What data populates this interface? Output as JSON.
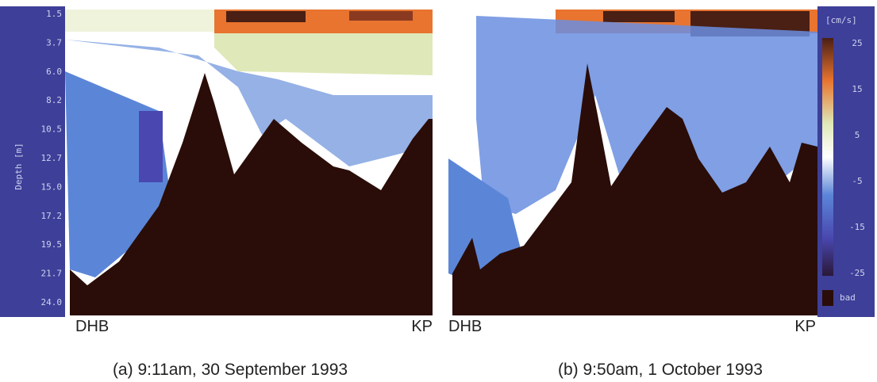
{
  "panels": [
    {
      "site_left": "DHB",
      "site_right": "KP",
      "caption": "(a) 9:11am, 30 September 1993"
    },
    {
      "site_left": "DHB",
      "site_right": "KP",
      "caption": "(b) 9:50am, 1 October 1993"
    }
  ],
  "depth_axis": {
    "label": "Depth [m]",
    "ticks": [
      "1.5",
      "3.7",
      "6.0",
      "8.2",
      "10.5",
      "12.7",
      "15.0",
      "17.2",
      "19.5",
      "21.7",
      "24.0"
    ]
  },
  "colorbar": {
    "unit": "[cm/s]",
    "ticks": [
      "25",
      "15",
      "5",
      "-5",
      "-15",
      "-25"
    ],
    "bad": "bad"
  }
}
